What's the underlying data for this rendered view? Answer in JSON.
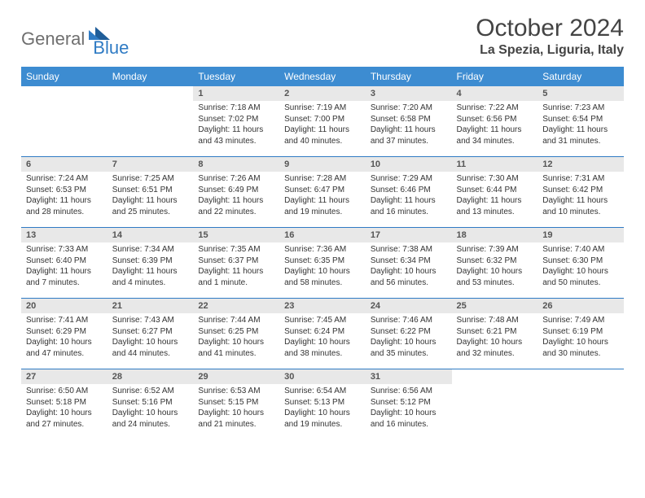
{
  "brand": {
    "part1": "General",
    "part2": "Blue"
  },
  "title": "October 2024",
  "subtitle": "La Spezia, Liguria, Italy",
  "colors": {
    "header_bg": "#3d8cd1",
    "header_text": "#ffffff",
    "rule": "#2f7bc4",
    "daynum_bg": "#e8e8e8",
    "body_text": "#333333"
  },
  "dow": [
    "Sunday",
    "Monday",
    "Tuesday",
    "Wednesday",
    "Thursday",
    "Friday",
    "Saturday"
  ],
  "weeks": [
    [
      null,
      null,
      {
        "n": "1",
        "sunrise": "7:18 AM",
        "sunset": "7:02 PM",
        "dl_h": "11",
        "dl_m": "43 minutes"
      },
      {
        "n": "2",
        "sunrise": "7:19 AM",
        "sunset": "7:00 PM",
        "dl_h": "11",
        "dl_m": "40 minutes"
      },
      {
        "n": "3",
        "sunrise": "7:20 AM",
        "sunset": "6:58 PM",
        "dl_h": "11",
        "dl_m": "37 minutes"
      },
      {
        "n": "4",
        "sunrise": "7:22 AM",
        "sunset": "6:56 PM",
        "dl_h": "11",
        "dl_m": "34 minutes"
      },
      {
        "n": "5",
        "sunrise": "7:23 AM",
        "sunset": "6:54 PM",
        "dl_h": "11",
        "dl_m": "31 minutes"
      }
    ],
    [
      {
        "n": "6",
        "sunrise": "7:24 AM",
        "sunset": "6:53 PM",
        "dl_h": "11",
        "dl_m": "28 minutes"
      },
      {
        "n": "7",
        "sunrise": "7:25 AM",
        "sunset": "6:51 PM",
        "dl_h": "11",
        "dl_m": "25 minutes"
      },
      {
        "n": "8",
        "sunrise": "7:26 AM",
        "sunset": "6:49 PM",
        "dl_h": "11",
        "dl_m": "22 minutes"
      },
      {
        "n": "9",
        "sunrise": "7:28 AM",
        "sunset": "6:47 PM",
        "dl_h": "11",
        "dl_m": "19 minutes"
      },
      {
        "n": "10",
        "sunrise": "7:29 AM",
        "sunset": "6:46 PM",
        "dl_h": "11",
        "dl_m": "16 minutes"
      },
      {
        "n": "11",
        "sunrise": "7:30 AM",
        "sunset": "6:44 PM",
        "dl_h": "11",
        "dl_m": "13 minutes"
      },
      {
        "n": "12",
        "sunrise": "7:31 AM",
        "sunset": "6:42 PM",
        "dl_h": "11",
        "dl_m": "10 minutes"
      }
    ],
    [
      {
        "n": "13",
        "sunrise": "7:33 AM",
        "sunset": "6:40 PM",
        "dl_h": "11",
        "dl_m": "7 minutes"
      },
      {
        "n": "14",
        "sunrise": "7:34 AM",
        "sunset": "6:39 PM",
        "dl_h": "11",
        "dl_m": "4 minutes"
      },
      {
        "n": "15",
        "sunrise": "7:35 AM",
        "sunset": "6:37 PM",
        "dl_h": "11",
        "dl_m": "1 minute"
      },
      {
        "n": "16",
        "sunrise": "7:36 AM",
        "sunset": "6:35 PM",
        "dl_h": "10",
        "dl_m": "58 minutes"
      },
      {
        "n": "17",
        "sunrise": "7:38 AM",
        "sunset": "6:34 PM",
        "dl_h": "10",
        "dl_m": "56 minutes"
      },
      {
        "n": "18",
        "sunrise": "7:39 AM",
        "sunset": "6:32 PM",
        "dl_h": "10",
        "dl_m": "53 minutes"
      },
      {
        "n": "19",
        "sunrise": "7:40 AM",
        "sunset": "6:30 PM",
        "dl_h": "10",
        "dl_m": "50 minutes"
      }
    ],
    [
      {
        "n": "20",
        "sunrise": "7:41 AM",
        "sunset": "6:29 PM",
        "dl_h": "10",
        "dl_m": "47 minutes"
      },
      {
        "n": "21",
        "sunrise": "7:43 AM",
        "sunset": "6:27 PM",
        "dl_h": "10",
        "dl_m": "44 minutes"
      },
      {
        "n": "22",
        "sunrise": "7:44 AM",
        "sunset": "6:25 PM",
        "dl_h": "10",
        "dl_m": "41 minutes"
      },
      {
        "n": "23",
        "sunrise": "7:45 AM",
        "sunset": "6:24 PM",
        "dl_h": "10",
        "dl_m": "38 minutes"
      },
      {
        "n": "24",
        "sunrise": "7:46 AM",
        "sunset": "6:22 PM",
        "dl_h": "10",
        "dl_m": "35 minutes"
      },
      {
        "n": "25",
        "sunrise": "7:48 AM",
        "sunset": "6:21 PM",
        "dl_h": "10",
        "dl_m": "32 minutes"
      },
      {
        "n": "26",
        "sunrise": "7:49 AM",
        "sunset": "6:19 PM",
        "dl_h": "10",
        "dl_m": "30 minutes"
      }
    ],
    [
      {
        "n": "27",
        "sunrise": "6:50 AM",
        "sunset": "5:18 PM",
        "dl_h": "10",
        "dl_m": "27 minutes"
      },
      {
        "n": "28",
        "sunrise": "6:52 AM",
        "sunset": "5:16 PM",
        "dl_h": "10",
        "dl_m": "24 minutes"
      },
      {
        "n": "29",
        "sunrise": "6:53 AM",
        "sunset": "5:15 PM",
        "dl_h": "10",
        "dl_m": "21 minutes"
      },
      {
        "n": "30",
        "sunrise": "6:54 AM",
        "sunset": "5:13 PM",
        "dl_h": "10",
        "dl_m": "19 minutes"
      },
      {
        "n": "31",
        "sunrise": "6:56 AM",
        "sunset": "5:12 PM",
        "dl_h": "10",
        "dl_m": "16 minutes"
      },
      null,
      null
    ]
  ],
  "labels": {
    "sunrise": "Sunrise:",
    "sunset": "Sunset:",
    "daylight": "Daylight:",
    "hours_word": "hours",
    "and_word": "and"
  }
}
